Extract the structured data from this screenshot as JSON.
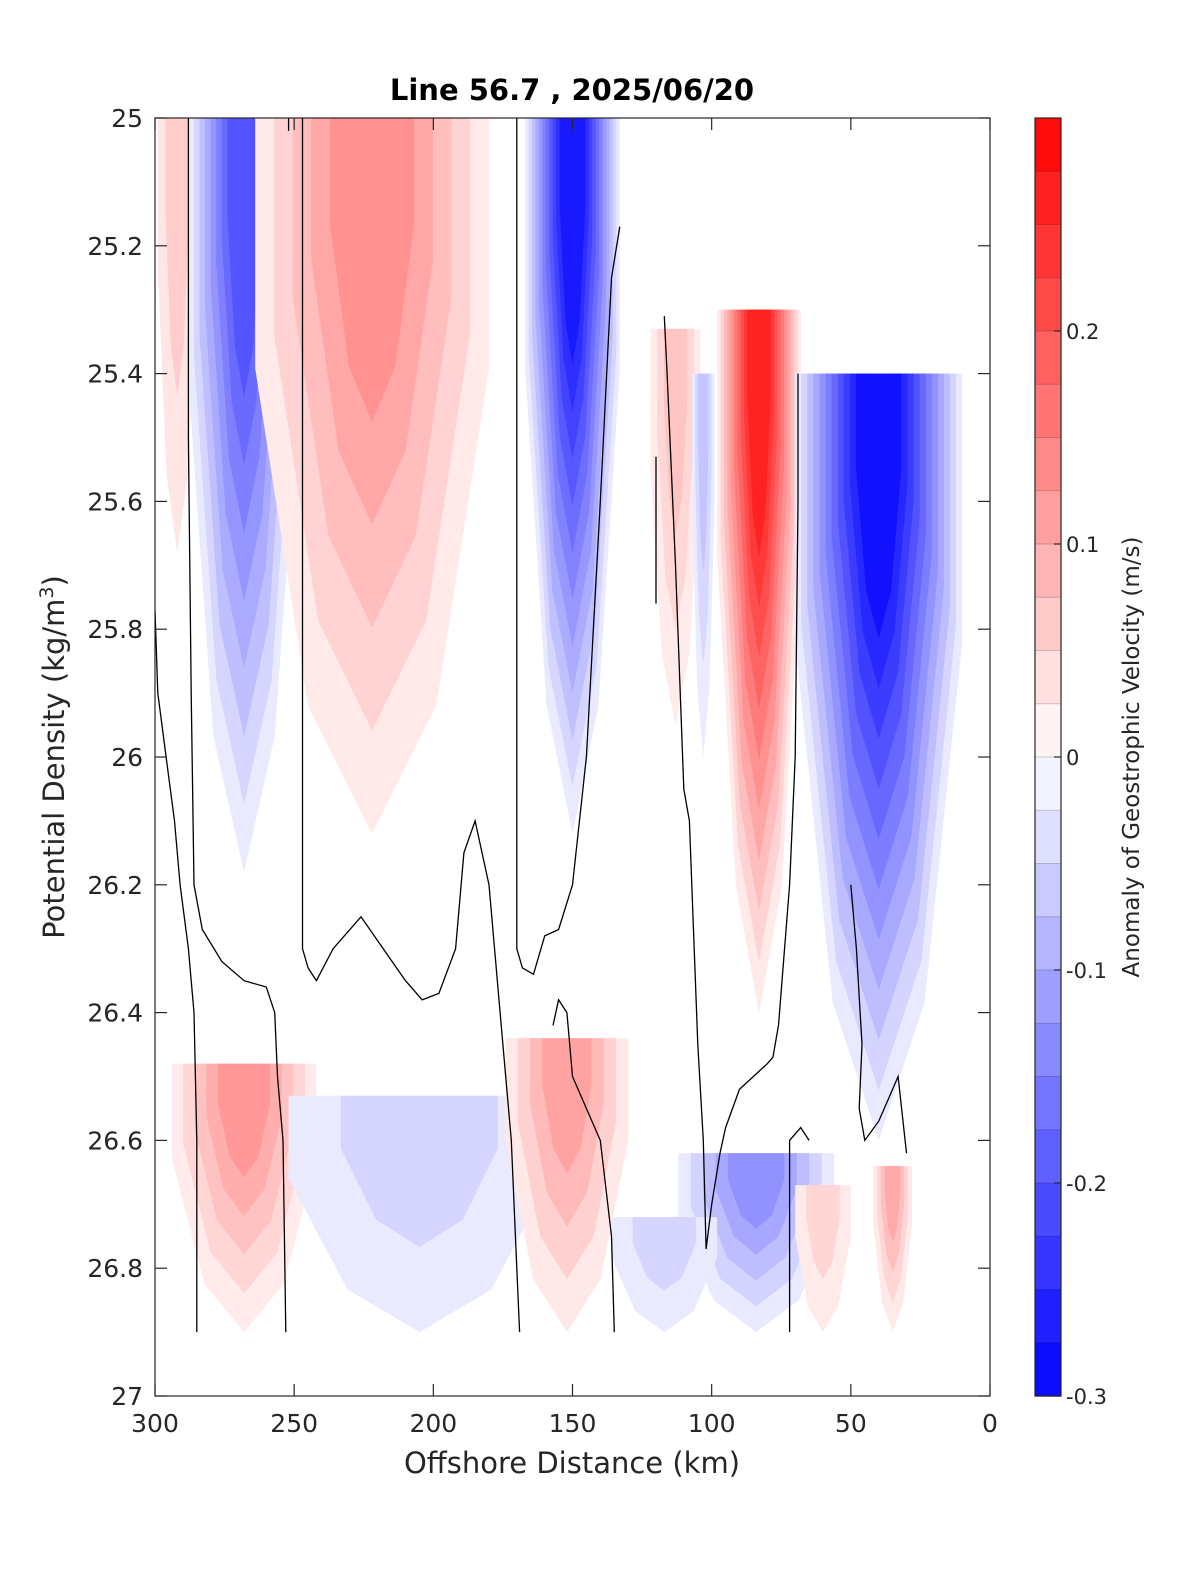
{
  "chart_data": {
    "type": "heatmap",
    "title": "Line 56.7 , 2025/06/20",
    "xlabel": "Offshore Distance (km)",
    "ylabel_main": "Potential Density (kg/m",
    "ylabel_sup": "3",
    "ylabel_close": ")",
    "xlim": [
      300,
      0
    ],
    "ylim": [
      25,
      27
    ],
    "x_reversed": true,
    "y_reversed": true,
    "grid": false,
    "xticks": [
      "300",
      "250",
      "200",
      "150",
      "100",
      "50",
      "0"
    ],
    "yticks": [
      "25",
      "25.2",
      "25.4",
      "25.6",
      "25.8",
      "26",
      "26.2",
      "26.4",
      "26.6",
      "26.8",
      "27"
    ],
    "colorbar": {
      "label": "Anomaly of Geostrophic Velocity (m/s)",
      "range": [
        -0.3,
        0.3
      ],
      "ticks": [
        "0.2",
        "0.1",
        "0",
        "-0.1",
        "-0.2",
        "-0.3"
      ],
      "tick_values": [
        0.2,
        0.1,
        0,
        -0.1,
        -0.2,
        -0.3
      ],
      "levels": 24,
      "colormap": "blue-white-red",
      "neg_color": "#0000ff",
      "pos_color": "#ff0000",
      "mid_color": "#ffffff"
    },
    "zero_contour_color": "#000000",
    "features": [
      {
        "kind": "filled",
        "x_center": 292,
        "x_half": 7,
        "y_top": 25.0,
        "y_bottom": 25.68,
        "value": 0.06
      },
      {
        "kind": "filled",
        "x_center": 268,
        "x_half": 20,
        "y_top": 25.0,
        "y_bottom": 26.18,
        "value": -0.2
      },
      {
        "kind": "filled",
        "x_center": 222,
        "x_half": 42,
        "y_top": 25.0,
        "y_bottom": 26.12,
        "value": 0.13
      },
      {
        "kind": "filled",
        "x_center": 150,
        "x_half": 17,
        "y_top": 25.0,
        "y_bottom": 26.12,
        "value": -0.27
      },
      {
        "kind": "filled",
        "x_center": 113,
        "x_half": 9,
        "y_top": 25.33,
        "y_bottom": 25.95,
        "value": 0.07
      },
      {
        "kind": "filled",
        "x_center": 103,
        "x_half": 4,
        "y_top": 25.4,
        "y_bottom": 26.0,
        "value": -0.07
      },
      {
        "kind": "filled",
        "x_center": 83,
        "x_half": 15,
        "y_top": 25.3,
        "y_bottom": 26.4,
        "value": 0.26
      },
      {
        "kind": "filled",
        "x_center": 40,
        "x_half": 30,
        "y_top": 25.4,
        "y_bottom": 26.6,
        "value": -0.28
      },
      {
        "kind": "filled",
        "x_center": 268,
        "x_half": 26,
        "y_top": 26.48,
        "y_bottom": 26.9,
        "value": 0.12
      },
      {
        "kind": "filled",
        "x_center": 205,
        "x_half": 47,
        "y_top": 26.53,
        "y_bottom": 26.9,
        "value": -0.05
      },
      {
        "kind": "filled",
        "x_center": 152,
        "x_half": 22,
        "y_top": 26.44,
        "y_bottom": 26.9,
        "value": 0.11
      },
      {
        "kind": "filled",
        "x_center": 84,
        "x_half": 28,
        "y_top": 26.62,
        "y_bottom": 26.9,
        "value": -0.13
      },
      {
        "kind": "filled",
        "x_center": 117,
        "x_half": 19,
        "y_top": 26.72,
        "y_bottom": 26.9,
        "value": -0.05
      },
      {
        "kind": "filled",
        "x_center": 60,
        "x_half": 10,
        "y_top": 26.67,
        "y_bottom": 26.9,
        "value": 0.05
      },
      {
        "kind": "filled",
        "x_center": 35,
        "x_half": 7,
        "y_top": 26.64,
        "y_bottom": 26.9,
        "value": 0.1
      }
    ],
    "zero_contours": [
      [
        [
          300,
          25.77
        ],
        [
          299,
          25.9
        ],
        [
          296,
          26.0
        ],
        [
          293,
          26.1
        ],
        [
          291,
          26.2
        ],
        [
          288,
          26.3
        ],
        [
          286,
          26.4
        ],
        [
          285,
          26.6
        ],
        [
          285,
          26.9
        ]
      ],
      [
        [
          288,
          25.0
        ],
        [
          288,
          25.5
        ],
        [
          287,
          25.9
        ],
        [
          286,
          26.2
        ],
        [
          283,
          26.27
        ],
        [
          276,
          26.32
        ],
        [
          268,
          26.35
        ],
        [
          260,
          26.36
        ],
        [
          257,
          26.4
        ],
        [
          256,
          26.5
        ],
        [
          254,
          26.6
        ],
        [
          253,
          26.9
        ]
      ],
      [
        [
          252,
          25.0
        ],
        [
          252,
          25.02
        ]
      ],
      [
        [
          247,
          25.0
        ],
        [
          247,
          25.5
        ],
        [
          247,
          26.0
        ],
        [
          247,
          26.3
        ],
        [
          245,
          26.33
        ],
        [
          242,
          26.35
        ],
        [
          236,
          26.3
        ],
        [
          226,
          26.25
        ],
        [
          218,
          26.3
        ],
        [
          210,
          26.35
        ],
        [
          204,
          26.38
        ],
        [
          198,
          26.37
        ],
        [
          192,
          26.3
        ],
        [
          189,
          26.15
        ],
        [
          185,
          26.1
        ],
        [
          180,
          26.2
        ],
        [
          176,
          26.4
        ],
        [
          172,
          26.6
        ],
        [
          170,
          26.8
        ],
        [
          169,
          26.9
        ]
      ],
      [
        [
          170,
          25.0
        ],
        [
          170,
          25.5
        ],
        [
          170,
          26.0
        ],
        [
          170,
          26.3
        ],
        [
          168,
          26.33
        ],
        [
          164,
          26.34
        ],
        [
          160,
          26.28
        ],
        [
          155,
          26.27
        ],
        [
          150,
          26.2
        ],
        [
          145,
          26.0
        ],
        [
          140,
          25.6
        ],
        [
          136,
          25.25
        ],
        [
          133,
          25.17
        ]
      ],
      [
        [
          135,
          26.9
        ],
        [
          136,
          26.75
        ],
        [
          140,
          26.6
        ],
        [
          145,
          26.55
        ],
        [
          150,
          26.5
        ],
        [
          152,
          26.4
        ],
        [
          155,
          26.38
        ],
        [
          157,
          26.42
        ]
      ],
      [
        [
          120,
          25.53
        ],
        [
          120,
          25.6
        ],
        [
          120,
          25.7
        ],
        [
          120,
          25.76
        ]
      ],
      [
        [
          117,
          25.31
        ],
        [
          116,
          25.4
        ],
        [
          113,
          25.7
        ],
        [
          110,
          26.05
        ],
        [
          108,
          26.1
        ],
        [
          105,
          26.45
        ],
        [
          103,
          26.6
        ],
        [
          102,
          26.77
        ],
        [
          100,
          26.7
        ],
        [
          97,
          26.62
        ],
        [
          95,
          26.58
        ],
        [
          90,
          26.52
        ],
        [
          85,
          26.5
        ],
        [
          80,
          26.48
        ],
        [
          78,
          26.47
        ],
        [
          76,
          26.42
        ],
        [
          72,
          26.2
        ],
        [
          70,
          26.0
        ],
        [
          69,
          25.6
        ],
        [
          69,
          25.4
        ]
      ],
      [
        [
          65,
          26.6
        ],
        [
          68,
          26.58
        ],
        [
          72,
          26.6
        ],
        [
          72,
          26.9
        ]
      ],
      [
        [
          50,
          26.2
        ],
        [
          48,
          26.3
        ],
        [
          46,
          26.45
        ],
        [
          47,
          26.55
        ],
        [
          45,
          26.6
        ],
        [
          40,
          26.57
        ],
        [
          36,
          26.53
        ],
        [
          33,
          26.5
        ],
        [
          30,
          26.62
        ]
      ]
    ]
  }
}
